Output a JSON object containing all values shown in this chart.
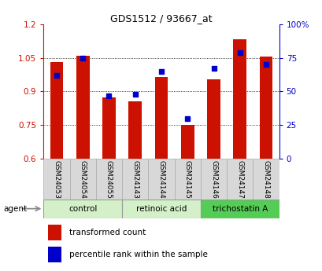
{
  "title": "GDS1512 / 93667_at",
  "samples": [
    "GSM24053",
    "GSM24054",
    "GSM24055",
    "GSM24143",
    "GSM24144",
    "GSM24145",
    "GSM24146",
    "GSM24147",
    "GSM24148"
  ],
  "transformed_count": [
    1.03,
    1.06,
    0.875,
    0.855,
    0.965,
    0.75,
    0.955,
    1.135,
    1.055
  ],
  "percentile_rank": [
    62,
    75,
    47,
    48,
    65,
    30,
    67,
    79,
    70
  ],
  "ylim_left": [
    0.6,
    1.2
  ],
  "ylim_right": [
    0,
    100
  ],
  "yticks_left": [
    0.6,
    0.75,
    0.9,
    1.05,
    1.2
  ],
  "yticks_right": [
    0,
    25,
    50,
    75,
    100
  ],
  "ytick_labels_left": [
    "0.6",
    "0.75",
    "0.9",
    "1.05",
    "1.2"
  ],
  "ytick_labels_right": [
    "0",
    "25",
    "50",
    "75",
    "100%"
  ],
  "bar_color": "#cc1100",
  "marker_color": "#0000cc",
  "groups": [
    {
      "label": "control",
      "indices": [
        0,
        1,
        2
      ],
      "color": "#d4f0c8"
    },
    {
      "label": "retinoic acid",
      "indices": [
        3,
        4,
        5
      ],
      "color": "#d4f0c8"
    },
    {
      "label": "trichostatin A",
      "indices": [
        6,
        7,
        8
      ],
      "color": "#55cc55"
    }
  ],
  "group_border_color": "#999999",
  "xlabel_agent": "agent",
  "legend_transformed": "transformed count",
  "legend_percentile": "percentile rank within the sample",
  "bar_width": 0.5,
  "axis_color_left": "#cc1100",
  "axis_color_right": "#0000cc",
  "grid_color": "black",
  "grid_lw": 0.6,
  "sample_bg_color": "#d8d8d8",
  "sample_border_color": "#aaaaaa"
}
